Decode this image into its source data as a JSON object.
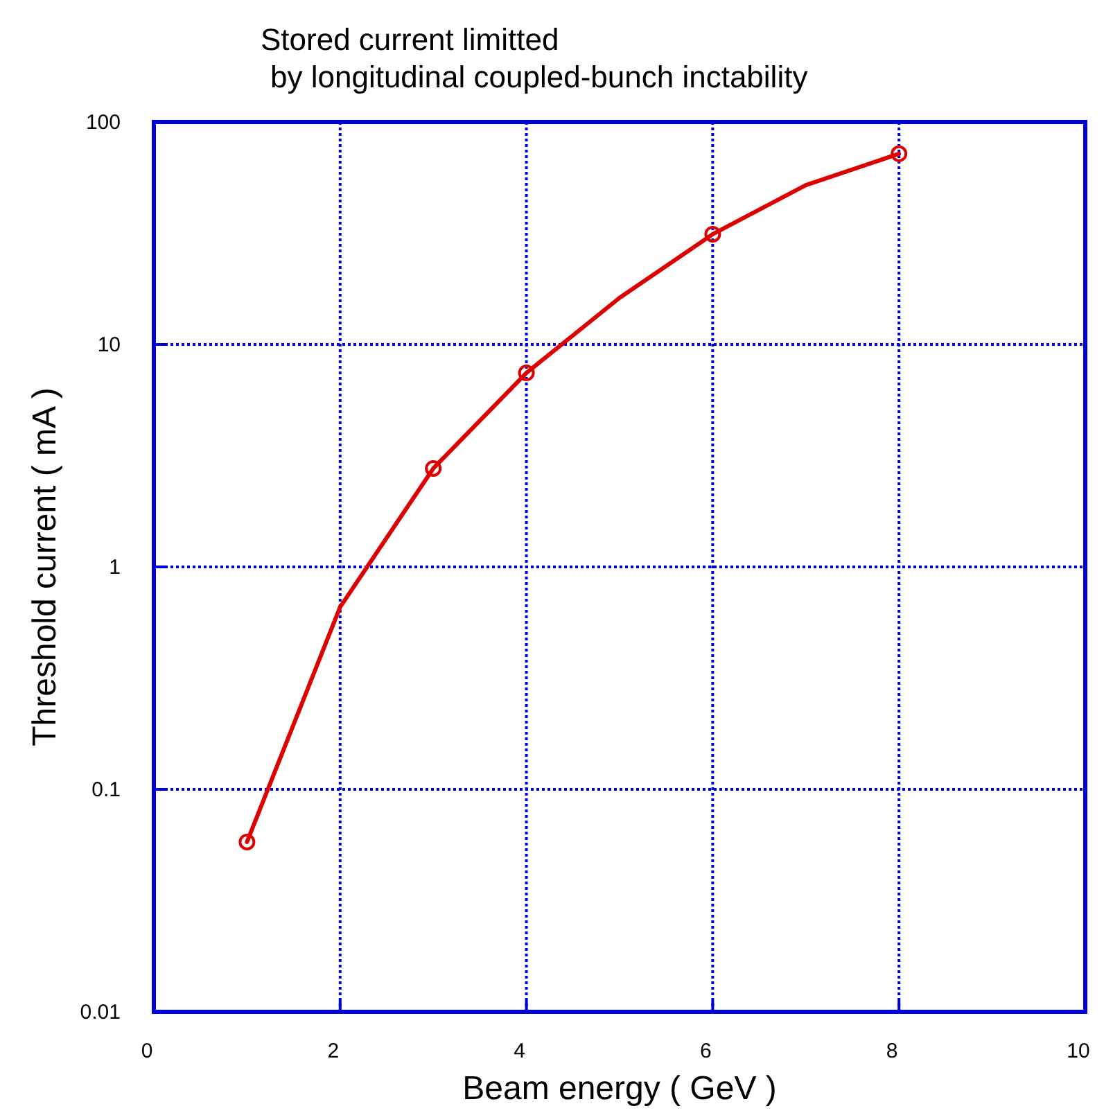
{
  "chart_data": {
    "type": "line",
    "title": "Stored current limitted\nby longitudinal coupled-bunch inctability",
    "xlabel": "Beam energy ( GeV )",
    "ylabel": "Threshold current ( mA )",
    "series": [
      {
        "color": "#dd0000",
        "x": [
          1,
          2,
          3,
          4,
          5,
          6,
          7,
          8
        ],
        "values": [
          0.058,
          0.66,
          2.77,
          7.45,
          16.2,
          31.3,
          52,
          72
        ],
        "marker": "none"
      },
      {
        "type": "scatter",
        "color": "#dd0000",
        "x": [
          1,
          3,
          4,
          6,
          8
        ],
        "values": [
          0.058,
          2.77,
          7.45,
          31.3,
          72
        ],
        "marker": "circle"
      }
    ],
    "log": "y",
    "xlim": [
      0,
      10
    ],
    "xticks": [
      0,
      2,
      4,
      6,
      8,
      10
    ],
    "ylim": [
      0.01,
      100
    ],
    "yticks": [
      0.01,
      0.1,
      1,
      10,
      100
    ],
    "grid": true,
    "line_style": "solid"
  }
}
